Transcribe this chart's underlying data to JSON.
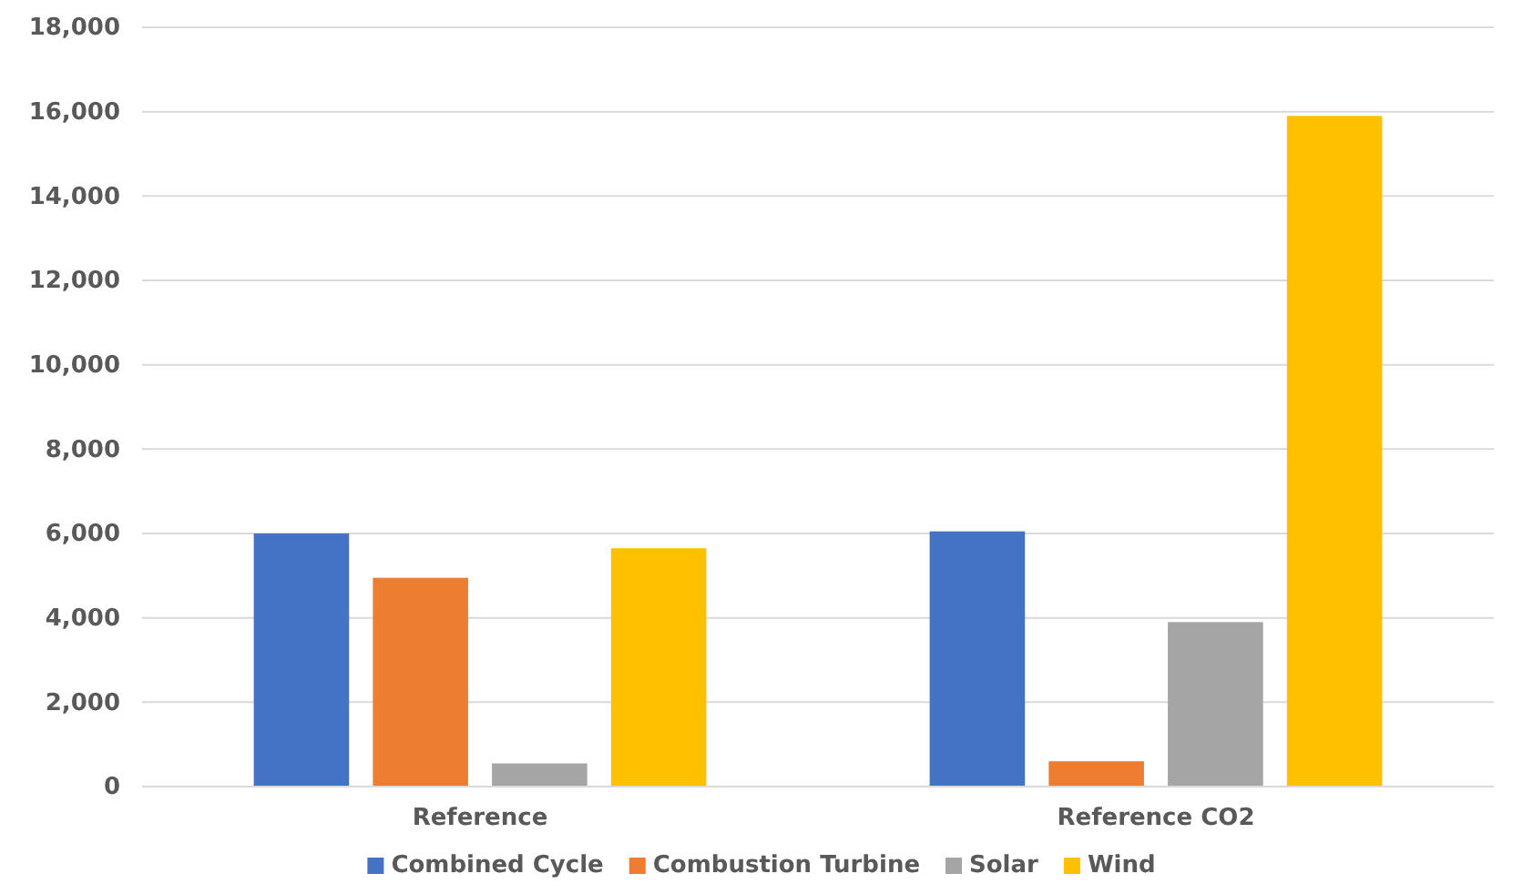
{
  "chart_data": {
    "type": "bar",
    "categories": [
      "Reference",
      "Reference CO2"
    ],
    "series": [
      {
        "name": "Combined Cycle",
        "color": "#4472c4",
        "values": [
          6000,
          6050
        ]
      },
      {
        "name": "Combustion Turbine",
        "color": "#ed7d31",
        "values": [
          4950,
          600
        ]
      },
      {
        "name": "Solar",
        "color": "#a5a5a5",
        "values": [
          550,
          3900
        ]
      },
      {
        "name": "Wind",
        "color": "#ffc000",
        "values": [
          5650,
          15900
        ]
      }
    ],
    "ylim": [
      0,
      18000
    ],
    "yticks": [
      {
        "value": 0,
        "label": "0"
      },
      {
        "value": 2000,
        "label": "2,000"
      },
      {
        "value": 4000,
        "label": "4,000"
      },
      {
        "value": 6000,
        "label": "6,000"
      },
      {
        "value": 8000,
        "label": "8,000"
      },
      {
        "value": 10000,
        "label": "10,000"
      },
      {
        "value": 12000,
        "label": "12,000"
      },
      {
        "value": 14000,
        "label": "14,000"
      },
      {
        "value": 16000,
        "label": "16,000"
      },
      {
        "value": 18000,
        "label": "18,000"
      }
    ],
    "grid": "y",
    "legend": "bottom"
  }
}
